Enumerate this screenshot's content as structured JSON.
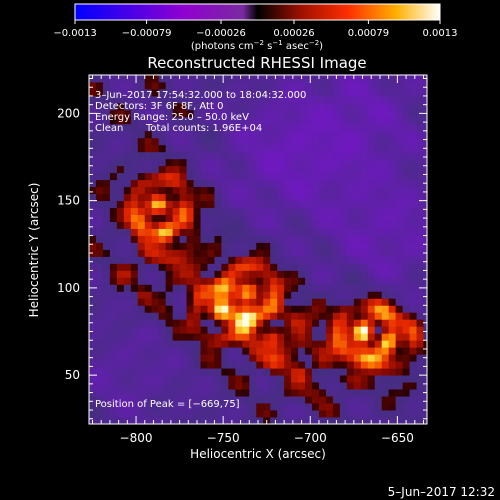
{
  "chart_data": {
    "type": "heatmap",
    "title": "Reconstructed RHESSI Image",
    "xlabel": "Heliocentric X (arcsec)",
    "ylabel": "Heliocentric Y (arcsec)",
    "xlim": [
      -827,
      -633
    ],
    "ylim": [
      22,
      222
    ],
    "x_ticks": [
      -800,
      -750,
      -700,
      -650
    ],
    "x_tick_labels": [
      "−800",
      "−750",
      "−700",
      "−650"
    ],
    "y_ticks": [
      50,
      100,
      150,
      200
    ],
    "y_tick_labels": [
      "50",
      "100",
      "150",
      "200"
    ],
    "colorbar": {
      "range": [
        -0.0013,
        0.0013
      ],
      "ticks": [
        -0.0013,
        -0.00079,
        -0.00026,
        0.00026,
        0.00079,
        0.0013
      ],
      "tick_labels": [
        "−0.0013",
        "−0.00079",
        "−0.00026",
        "0.00026",
        "0.00079",
        "0.0013"
      ],
      "units_main": "(photons cm",
      "units_exp1": "−2",
      "units_s": " s",
      "units_exp2": "−1",
      "units_asec": " asec",
      "units_exp3": "−2",
      "units_close": ")",
      "colors": [
        "#0000ff",
        "#9000d0",
        "#000000",
        "#ff3000",
        "#ffb000",
        "#ffffff"
      ]
    },
    "annotations": {
      "time_range": "3–Jun–2017 17:54:32.000 to 18:04:32.000",
      "detectors": "Detectors: 3F 6F 8F, Att 0",
      "energy_range": "Energy Range: 25.0 – 50.0 keV",
      "algorithm": "Clean",
      "total_counts": "Total counts: 1.96E+04",
      "peak_position": "Position of Peak = [−669,75]"
    },
    "peak": {
      "x": -669,
      "y": 75
    },
    "bright_sources": [
      {
        "x": -787,
        "y": 148,
        "strength": 0.8
      },
      {
        "x": -783,
        "y": 132,
        "strength": 0.55
      },
      {
        "x": -735,
        "y": 98,
        "strength": 0.85
      },
      {
        "x": -752,
        "y": 86,
        "strength": 0.8
      },
      {
        "x": -721,
        "y": 72,
        "strength": 0.45
      },
      {
        "x": -669,
        "y": 75,
        "strength": 1.0
      },
      {
        "x": -656,
        "y": 70,
        "strength": 0.65
      },
      {
        "x": -706,
        "y": 52,
        "strength": 0.35
      },
      {
        "x": -796,
        "y": 96,
        "strength": 0.3
      }
    ],
    "negative_sources": [
      {
        "x": -715,
        "y": 175,
        "strength": 0.6
      },
      {
        "x": -670,
        "y": 200,
        "strength": 0.5
      },
      {
        "x": -655,
        "y": 130,
        "strength": 0.55
      },
      {
        "x": -805,
        "y": 55,
        "strength": 0.3
      }
    ]
  },
  "footer": {
    "timestamp": "5–Jun–2017 12:32"
  }
}
